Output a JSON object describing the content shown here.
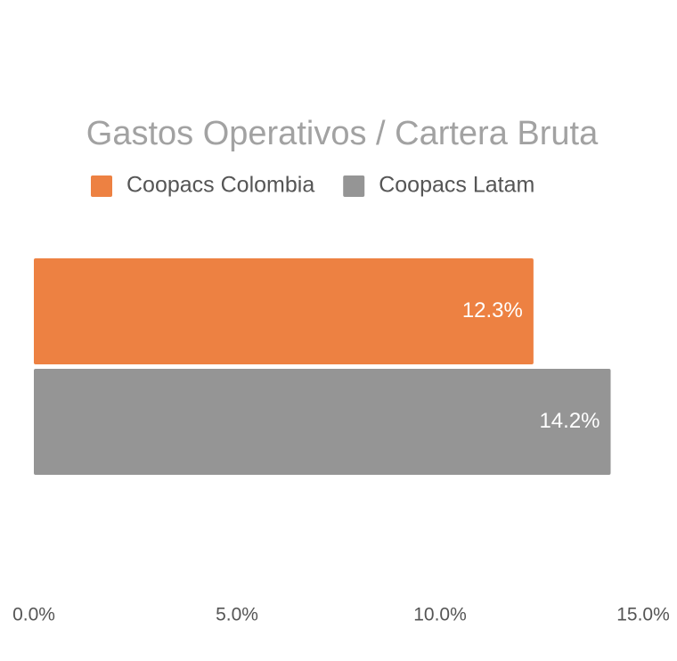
{
  "chart_data": {
    "type": "hbar",
    "title": "Gastos Operativos / Cartera Bruta",
    "categories": [
      null
    ],
    "series": [
      {
        "name": "Coopacs Colombia",
        "color": "#ed8142",
        "values": [
          12.3
        ],
        "value_labels": [
          "12.3%"
        ]
      },
      {
        "name": "Coopacs Latam",
        "color": "#959595",
        "values": [
          14.2
        ],
        "value_labels": [
          "14.2%"
        ]
      }
    ],
    "xlim": [
      0,
      15
    ],
    "xticks": [
      {
        "value": 0,
        "label": "0.0%"
      },
      {
        "value": 5,
        "label": "5.0%"
      },
      {
        "value": 10,
        "label": "10.0%"
      },
      {
        "value": 15,
        "label": "15.0%"
      }
    ],
    "grid": false,
    "legend": "top"
  }
}
